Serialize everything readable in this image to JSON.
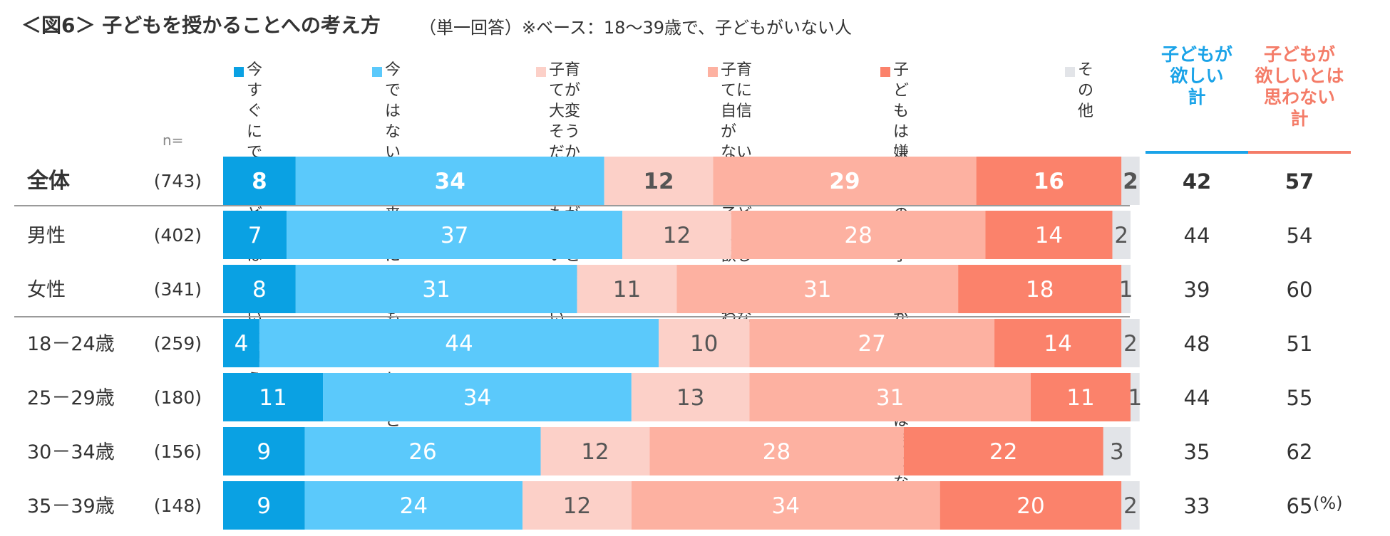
{
  "title": "＜図6＞ 子どもを授かることへの考え方",
  "subtitle": "（単一回答）※ベース：18～39歳で、子どもがいない人",
  "n_label": "n=",
  "unit_label": "(%)",
  "colors": {
    "series": [
      "#0aa1e3",
      "#5bc9fb",
      "#fcd0c8",
      "#fdb1a1",
      "#fb826b",
      "#e2e4e8"
    ],
    "want_total": "#1aa3e8",
    "not_want_total": "#f47c68"
  },
  "legend": [
    "今すぐにでも\n子どもは欲しい\nと思う",
    "今ではないが、\n将来的に子どもは\n欲しいと思う",
    "子育てが大変そう\nだから、子どもが\n欲しいとは思わない",
    "子育てに自信が\nないから、子どもが\n欲しいとは思わない",
    "子どもは嫌いなので、\n子どもが欲しいとは\n思わない",
    "その他"
  ],
  "summary_headers": {
    "want": "子どもが\n欲しい\n計",
    "not_want": "子どもが\n欲しいとは\n思わない\n計"
  },
  "chart_data": {
    "type": "stacked-bar-horizontal",
    "title": "＜図6＞ 子どもを授かることへの考え方",
    "unit": "%",
    "series": [
      {
        "name": "今すぐにでも子どもは欲しいと思う",
        "values": [
          8,
          7,
          8,
          4,
          11,
          9,
          9
        ]
      },
      {
        "name": "今ではないが、将来的に子どもは欲しいと思う",
        "values": [
          34,
          37,
          31,
          44,
          34,
          26,
          24
        ]
      },
      {
        "name": "子育てが大変そうだから、子どもが欲しいとは思わない",
        "values": [
          12,
          12,
          11,
          10,
          13,
          12,
          12
        ]
      },
      {
        "name": "子育てに自信がないから、子どもが欲しいとは思わない",
        "values": [
          29,
          28,
          31,
          27,
          31,
          28,
          34
        ]
      },
      {
        "name": "子どもは嫌いなので、子どもが欲しいとは思わない",
        "values": [
          16,
          14,
          18,
          14,
          11,
          22,
          20
        ]
      },
      {
        "name": "その他",
        "values": [
          2,
          2,
          1,
          2,
          1,
          3,
          2
        ]
      }
    ],
    "rows": [
      {
        "label": "全体",
        "n": "(743)",
        "want_total": 42,
        "not_want_total": 57,
        "bold": true
      },
      {
        "label": "男性",
        "n": "(402)",
        "want_total": 44,
        "not_want_total": 54,
        "bold": false
      },
      {
        "label": "女性",
        "n": "(341)",
        "want_total": 39,
        "not_want_total": 60,
        "bold": false
      },
      {
        "label": "18－24歳",
        "n": "(259)",
        "want_total": 48,
        "not_want_total": 51,
        "bold": false
      },
      {
        "label": "25－29歳",
        "n": "(180)",
        "want_total": 44,
        "not_want_total": 55,
        "bold": false
      },
      {
        "label": "30－34歳",
        "n": "(156)",
        "want_total": 35,
        "not_want_total": 62,
        "bold": false
      },
      {
        "label": "35－39歳",
        "n": "(148)",
        "want_total": 33,
        "not_want_total": 65,
        "bold": false
      }
    ],
    "label_colors": [
      "#ffffff",
      "#ffffff",
      "#555555",
      "#ffffff",
      "#ffffff",
      "#555555"
    ]
  }
}
